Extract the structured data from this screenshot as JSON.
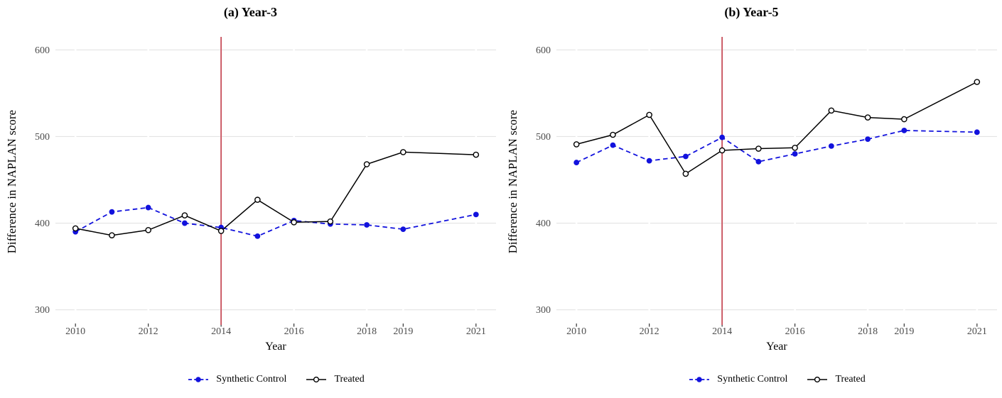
{
  "figure": {
    "background": "#ffffff",
    "colors": {
      "synthetic": "#1212dd",
      "treated": "#000000",
      "vline": "#c9535f",
      "gridline": "#e3e3e3",
      "tick_label": "#4d4d4d",
      "tick_mark": "#333333",
      "open_marker_fill": "#ffffff"
    },
    "legend": {
      "items": [
        {
          "label": "Synthetic Control",
          "series": "synthetic",
          "marker": "filled-circle",
          "line_style": "dashed"
        },
        {
          "label": "Treated",
          "series": "treated",
          "marker": "open-circle",
          "line_style": "solid"
        }
      ]
    }
  },
  "chart_data": [
    {
      "type": "line",
      "title": "(a) Year-3",
      "xlabel": "Year",
      "ylabel": "Difference in NAPLAN score",
      "x": [
        2010,
        2011,
        2012,
        2013,
        2014,
        2015,
        2016,
        2017,
        2018,
        2019,
        2021
      ],
      "x_tick_values": [
        2010,
        2012,
        2014,
        2016,
        2018,
        2019,
        2021
      ],
      "x_tick_labels": [
        "2010",
        "2012",
        "2014",
        "2016",
        "2018",
        "2019",
        "2021"
      ],
      "y_ticks": [
        300,
        400,
        500,
        600
      ],
      "y_tick_labels": [
        "300",
        "400",
        "500",
        "600"
      ],
      "xlim": [
        2009.45,
        2021.55
      ],
      "ylim": [
        285,
        615
      ],
      "vline_x": 2014,
      "grid": "horizontal-major",
      "legend_position": "bottom",
      "series": [
        {
          "name": "Synthetic Control",
          "color_key": "synthetic",
          "line_style": "dashed",
          "marker": "filled-circle",
          "values": [
            390,
            413,
            418,
            400,
            395,
            385,
            403,
            399,
            398,
            393,
            410
          ]
        },
        {
          "name": "Treated",
          "color_key": "treated",
          "line_style": "solid",
          "marker": "open-circle",
          "values": [
            394,
            386,
            392,
            409,
            391,
            427,
            401,
            402,
            468,
            482,
            479
          ]
        }
      ]
    },
    {
      "type": "line",
      "title": "(b) Year-5",
      "xlabel": "Year",
      "ylabel": "Difference in NAPLAN score",
      "x": [
        2010,
        2011,
        2012,
        2013,
        2014,
        2015,
        2016,
        2017,
        2018,
        2019,
        2021
      ],
      "x_tick_values": [
        2010,
        2012,
        2014,
        2016,
        2018,
        2019,
        2021
      ],
      "x_tick_labels": [
        "2010",
        "2012",
        "2014",
        "2016",
        "2018",
        "2019",
        "2021"
      ],
      "y_ticks": [
        300,
        400,
        500,
        600
      ],
      "y_tick_labels": [
        "300",
        "400",
        "500",
        "600"
      ],
      "xlim": [
        2009.45,
        2021.55
      ],
      "ylim": [
        285,
        615
      ],
      "vline_x": 2014,
      "grid": "horizontal-major",
      "legend_position": "bottom",
      "series": [
        {
          "name": "Synthetic Control",
          "color_key": "synthetic",
          "line_style": "dashed",
          "marker": "filled-circle",
          "values": [
            470,
            490,
            472,
            477,
            499,
            471,
            480,
            489,
            497,
            507,
            505
          ]
        },
        {
          "name": "Treated",
          "color_key": "treated",
          "line_style": "solid",
          "marker": "open-circle",
          "values": [
            491,
            502,
            525,
            457,
            484,
            486,
            487,
            530,
            522,
            520,
            563
          ]
        }
      ]
    }
  ]
}
